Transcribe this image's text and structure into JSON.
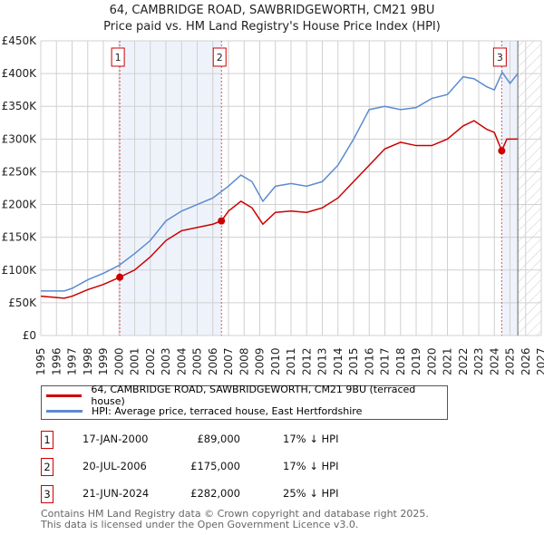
{
  "chart_data": {
    "type": "line",
    "title": "64, CAMBRIDGE ROAD, SAWBRIDGEWORTH, CM21 9BU",
    "subtitle": "Price paid vs. HM Land Registry's House Price Index (HPI)",
    "xlim": [
      1995,
      2027
    ],
    "ylim": [
      0,
      450000
    ],
    "yticks": [
      {
        "v": 0,
        "label": "£0"
      },
      {
        "v": 50000,
        "label": "£50K"
      },
      {
        "v": 100000,
        "label": "£100K"
      },
      {
        "v": 150000,
        "label": "£150K"
      },
      {
        "v": 200000,
        "label": "£200K"
      },
      {
        "v": 250000,
        "label": "£250K"
      },
      {
        "v": 300000,
        "label": "£300K"
      },
      {
        "v": 350000,
        "label": "£350K"
      },
      {
        "v": 400000,
        "label": "£400K"
      },
      {
        "v": 450000,
        "label": "£450K"
      }
    ],
    "xticks": [
      "1995",
      "1996",
      "1997",
      "1998",
      "1999",
      "2000",
      "2001",
      "2002",
      "2003",
      "2004",
      "2005",
      "2006",
      "2007",
      "2008",
      "2009",
      "2010",
      "2011",
      "2012",
      "2013",
      "2014",
      "2015",
      "2016",
      "2017",
      "2018",
      "2019",
      "2020",
      "2021",
      "2022",
      "2023",
      "2024",
      "2025",
      "2026",
      "2027"
    ],
    "grid": true,
    "forecast_start": 2025.5,
    "series": [
      {
        "name": "64, CAMBRIDGE ROAD, SAWBRIDGEWORTH, CM21 9BU (terraced house)",
        "color": "#cc0000",
        "x": [
          1995,
          1996.5,
          1997,
          1998,
          1999,
          2000.05,
          2001,
          2002,
          2003,
          2004,
          2005,
          2006,
          2006.55,
          2007,
          2007.8,
          2008.5,
          2009.2,
          2010,
          2011,
          2012,
          2013,
          2014,
          2015,
          2016,
          2017,
          2018,
          2019,
          2020,
          2021,
          2022,
          2022.7,
          2023.5,
          2024,
          2024.47,
          2024.8,
          2025.5
        ],
        "y": [
          60000,
          57000,
          60000,
          70000,
          78000,
          89000,
          100000,
          120000,
          145000,
          160000,
          165000,
          170000,
          175000,
          190000,
          205000,
          195000,
          170000,
          188000,
          190000,
          188000,
          195000,
          210000,
          235000,
          260000,
          285000,
          295000,
          290000,
          290000,
          300000,
          320000,
          328000,
          315000,
          310000,
          282000,
          300000,
          300000
        ]
      },
      {
        "name": "HPI: Average price, terraced house, East Hertfordshire",
        "color": "#5b8bd0",
        "x": [
          1995,
          1996.5,
          1997,
          1998,
          1999,
          2000,
          2001,
          2002,
          2003,
          2004,
          2005,
          2006,
          2007,
          2007.8,
          2008.5,
          2009.2,
          2010,
          2011,
          2012,
          2013,
          2014,
          2015,
          2016,
          2017,
          2018,
          2019,
          2020,
          2021,
          2022,
          2022.7,
          2023.5,
          2024,
          2024.5,
          2025,
          2025.5
        ],
        "y": [
          68000,
          68000,
          72000,
          85000,
          95000,
          107000,
          125000,
          145000,
          175000,
          190000,
          200000,
          210000,
          228000,
          245000,
          235000,
          205000,
          228000,
          232000,
          228000,
          235000,
          260000,
          300000,
          345000,
          350000,
          345000,
          348000,
          362000,
          368000,
          395000,
          392000,
          380000,
          375000,
          402000,
          385000,
          400000
        ]
      }
    ],
    "sales": [
      {
        "n": "1",
        "x": 2000.05,
        "y": 89000,
        "date": "17-JAN-2000",
        "price": "£89,000",
        "delta": "17% ↓ HPI"
      },
      {
        "n": "2",
        "x": 2006.55,
        "y": 175000,
        "date": "20-JUL-2006",
        "price": "£175,000",
        "delta": "17% ↓ HPI"
      },
      {
        "n": "3",
        "x": 2024.47,
        "y": 282000,
        "date": "21-JUN-2024",
        "price": "£282,000",
        "delta": "25% ↓ HPI"
      }
    ]
  },
  "legend": {
    "red": "64, CAMBRIDGE ROAD, SAWBRIDGEWORTH, CM21 9BU (terraced house)",
    "blue": "HPI: Average price, terraced house, East Hertfordshire"
  },
  "footer": {
    "line1": "Contains HM Land Registry data © Crown copyright and database right 2025.",
    "line2": "This data is licensed under the Open Government Licence v3.0."
  }
}
